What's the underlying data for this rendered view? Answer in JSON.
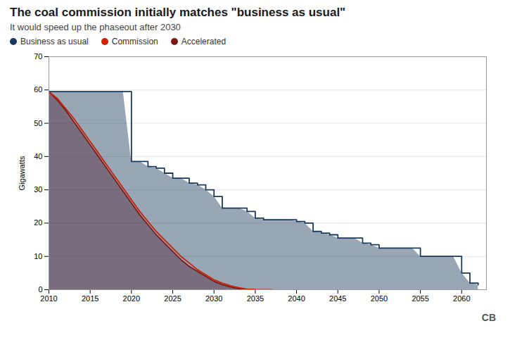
{
  "chart_data": {
    "type": "line",
    "title": "The coal commission initially matches \"business as usual\"",
    "subtitle": "It would speed up the phaseout after 2030",
    "ylabel": "Gigawatts",
    "xlim": [
      2010,
      2063
    ],
    "ylim": [
      0,
      70
    ],
    "xticks": [
      2010,
      2015,
      2020,
      2025,
      2030,
      2035,
      2040,
      2045,
      2050,
      2055,
      2060
    ],
    "yticks": [
      0,
      10,
      20,
      30,
      40,
      50,
      60,
      70
    ],
    "grid": true,
    "legend": "top",
    "annotations": [
      "CB"
    ],
    "series": [
      {
        "name": "Business as usual",
        "type": "area",
        "line_style": "step",
        "color": "#1a3a5c",
        "x": [
          2010,
          2011,
          2012,
          2013,
          2014,
          2015,
          2016,
          2017,
          2018,
          2019,
          2020,
          2021,
          2022,
          2023,
          2024,
          2025,
          2026,
          2027,
          2028,
          2029,
          2030,
          2031,
          2032,
          2033,
          2034,
          2035,
          2036,
          2037,
          2038,
          2039,
          2040,
          2041,
          2042,
          2043,
          2044,
          2045,
          2046,
          2047,
          2048,
          2049,
          2050,
          2051,
          2052,
          2053,
          2054,
          2055,
          2056,
          2057,
          2058,
          2059,
          2060,
          2061,
          2062
        ],
        "values": [
          59.5,
          59.5,
          59.5,
          59.5,
          59.5,
          59.5,
          59.5,
          59.5,
          59.5,
          59.5,
          38.5,
          38.5,
          37.0,
          36.5,
          35.0,
          33.5,
          33.5,
          32.0,
          31.5,
          30.0,
          28.0,
          24.5,
          24.5,
          24.5,
          23.5,
          21.5,
          21.0,
          21.0,
          21.0,
          21.0,
          20.5,
          20.0,
          17.5,
          17.0,
          16.5,
          15.5,
          15.5,
          15.5,
          14.0,
          13.5,
          12.5,
          12.5,
          12.5,
          12.5,
          12.5,
          10.0,
          10.0,
          10.0,
          10.0,
          10.0,
          5.0,
          2.0,
          1.5
        ]
      },
      {
        "name": "Commission",
        "type": "line",
        "color": "#cc2200",
        "x": [
          2010,
          2011,
          2012,
          2013,
          2014,
          2015,
          2016,
          2017,
          2018,
          2019,
          2020,
          2021,
          2022,
          2023,
          2024,
          2025,
          2026,
          2027,
          2028,
          2029,
          2030,
          2031,
          2032,
          2033,
          2034,
          2035,
          2036,
          2037
        ],
        "values": [
          59.5,
          57.5,
          54.5,
          51.5,
          48.0,
          44.5,
          41.0,
          37.5,
          34.0,
          30.5,
          27.0,
          23.5,
          20.5,
          17.5,
          15.0,
          12.5,
          10.0,
          8.0,
          6.0,
          4.5,
          3.0,
          2.0,
          1.2,
          0.6,
          0.2,
          0.05,
          0.0,
          0.0
        ]
      },
      {
        "name": "Accelerated",
        "type": "area",
        "color": "#7a1a1a",
        "x": [
          2010,
          2011,
          2012,
          2013,
          2014,
          2015,
          2016,
          2017,
          2018,
          2019,
          2020,
          2021,
          2022,
          2023,
          2024,
          2025,
          2026,
          2027,
          2028,
          2029,
          2030,
          2031,
          2032,
          2033,
          2034,
          2035
        ],
        "values": [
          59.5,
          57.0,
          54.0,
          50.5,
          47.0,
          43.5,
          40.0,
          36.5,
          33.0,
          29.5,
          26.0,
          22.5,
          19.5,
          16.5,
          14.0,
          11.5,
          9.0,
          7.0,
          5.5,
          4.0,
          2.5,
          1.5,
          0.8,
          0.3,
          0.05,
          0.0
        ]
      }
    ]
  }
}
